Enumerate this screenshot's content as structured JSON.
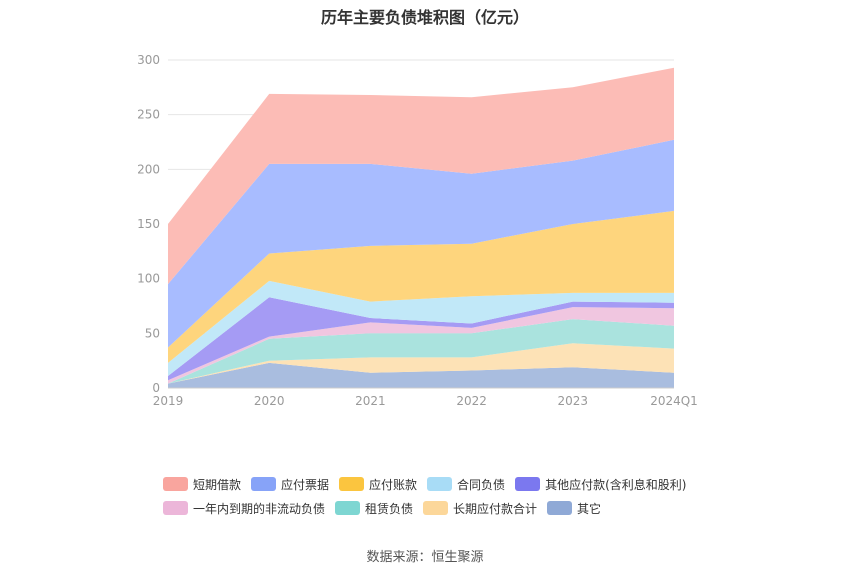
{
  "title": "历年主要负债堆积图（亿元）",
  "source": "数据来源：恒生聚源",
  "chart_data": {
    "type": "area",
    "stacked": true,
    "title": "历年主要负债堆积图（亿元）",
    "categories": [
      "2019",
      "2020",
      "2021",
      "2022",
      "2023",
      "2024Q1"
    ],
    "ylim": [
      0,
      300
    ],
    "yticks": [
      0,
      50,
      100,
      150,
      200,
      250,
      300
    ],
    "grid": true,
    "legend_position": "bottom",
    "series": [
      {
        "name": "其它",
        "color": "#a9bddf",
        "values": [
          4,
          23,
          14,
          16,
          19,
          14
        ]
      },
      {
        "name": "长期应付款合计",
        "color": "#fde2b6",
        "values": [
          0,
          2,
          14,
          12,
          22,
          22
        ]
      },
      {
        "name": "租赁负债",
        "color": "#aae3de",
        "values": [
          0,
          20,
          22,
          22,
          22,
          21
        ]
      },
      {
        "name": "一年内到期的非流动负债",
        "color": "#f0c6e0",
        "values": [
          3,
          2,
          10,
          5,
          11,
          16
        ]
      },
      {
        "name": "其他应付款(含利息和股利)",
        "color": "#a59bf4",
        "values": [
          4,
          36,
          4,
          4,
          5,
          5
        ]
      },
      {
        "name": "合同负债",
        "color": "#c1e8f8",
        "values": [
          12,
          15,
          15,
          25,
          8,
          9
        ]
      },
      {
        "name": "应付账款",
        "color": "#fed57d",
        "values": [
          14,
          25,
          51,
          48,
          63,
          75
        ]
      },
      {
        "name": "应付票据",
        "color": "#a8bcff",
        "values": [
          58,
          82,
          75,
          64,
          58,
          65
        ]
      },
      {
        "name": "短期借款",
        "color": "#fcbcb6",
        "values": [
          55,
          64,
          63,
          70,
          67,
          66
        ]
      }
    ]
  },
  "legend_rows": [
    [
      {
        "label": "短期借款",
        "color": "#f9a59e"
      },
      {
        "label": "应付票据",
        "color": "#87a3f8"
      },
      {
        "label": "应付账款",
        "color": "#fbc53f"
      },
      {
        "label": "合同负债",
        "color": "#a8dcf6"
      },
      {
        "label": "其他应付款(含利息和股利)",
        "color": "#7b78ef"
      }
    ],
    [
      {
        "label": "一年内到期的非流动负债",
        "color": "#ecb6d9"
      },
      {
        "label": "租赁负债",
        "color": "#7ed6d2"
      },
      {
        "label": "长期应付款合计",
        "color": "#fcd79a"
      },
      {
        "label": "其它",
        "color": "#8fa9d6"
      }
    ]
  ]
}
